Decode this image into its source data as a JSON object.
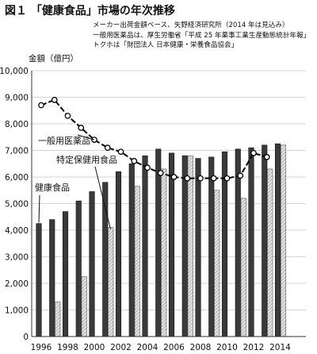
{
  "header": {
    "title": "図１ 「健康食品」市場の年次推移",
    "notes": [
      "メーカー出荷金額ベース、矢野経済研究所（2014 年は見込み）",
      "一般用医薬品は、厚生労働省「平成 25 年薬事工業生産動態統計年報」",
      "トクホは「財団法人 日本健康・栄養食品協会」"
    ]
  },
  "colors": {
    "health_food_bar": "#3a3a3a",
    "tokuho_bar": "#d8d8d8",
    "otc_line": "#000000",
    "grid": "#c8c8c8"
  },
  "chart_data": {
    "type": "bar",
    "ylabel": "金額（億円）",
    "xlabel": "",
    "ylim": [
      0,
      10000
    ],
    "yticks": [
      "0",
      "1,000",
      "2,000",
      "3,000",
      "4,000",
      "5,000",
      "6,000",
      "7,000",
      "8,000",
      "9,000",
      "10,000"
    ],
    "xtick_labels": [
      "1996",
      "1998",
      "2000",
      "2002",
      "2004",
      "2006",
      "2008",
      "2010",
      "2012",
      "2014"
    ],
    "grid": true,
    "categories": [
      "1996",
      "1997",
      "1998",
      "1999",
      "2000",
      "2001",
      "2002",
      "2003",
      "2004",
      "2005",
      "2006",
      "2007",
      "2008",
      "2009",
      "2010",
      "2011",
      "2012",
      "2013",
      "2014"
    ],
    "series": [
      {
        "name": "健康食品",
        "kind": "bar",
        "values": [
          4250,
          4400,
          4700,
          5100,
          5450,
          5800,
          6200,
          6500,
          6800,
          7050,
          6900,
          6800,
          6700,
          6750,
          6950,
          7050,
          7100,
          7200,
          7250
        ]
      },
      {
        "name": "特定保健用食品",
        "kind": "bar",
        "values": [
          null,
          1300,
          null,
          2250,
          null,
          4100,
          null,
          5650,
          null,
          6300,
          null,
          6800,
          null,
          5500,
          null,
          5200,
          null,
          6300,
          7200
        ]
      },
      {
        "name": "一般用医薬品",
        "kind": "line",
        "values": [
          8700,
          8900,
          8300,
          7850,
          7400,
          7100,
          6950,
          6600,
          6350,
          6150,
          6000,
          5950,
          5950,
          5950,
          5950,
          6050,
          6900,
          6750,
          null
        ]
      }
    ]
  }
}
